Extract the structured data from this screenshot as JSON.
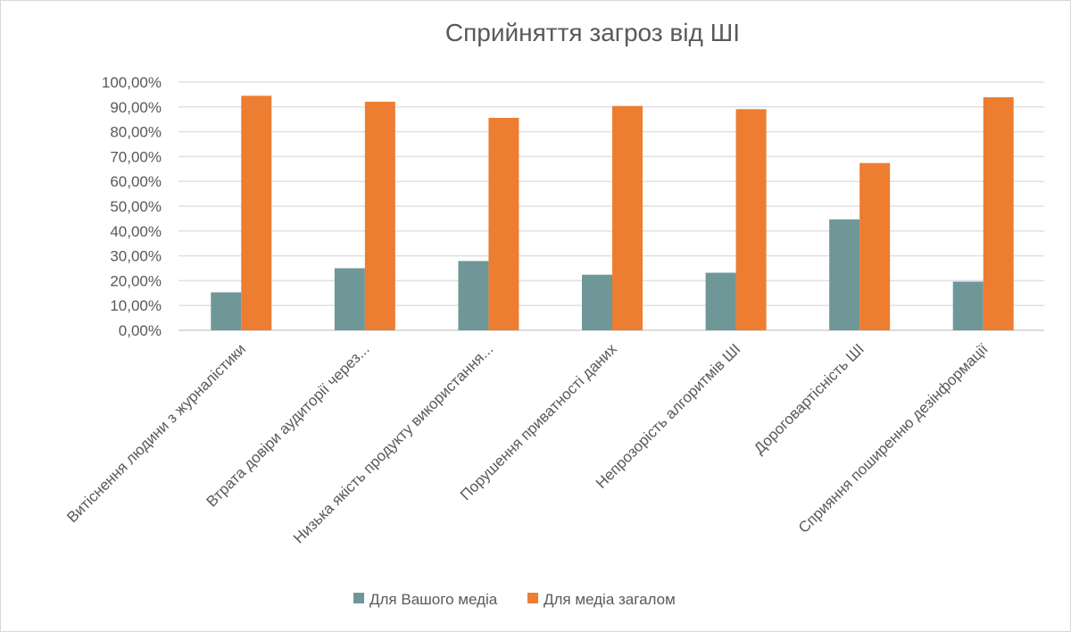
{
  "chart_data": {
    "type": "bar",
    "title": "Сприйняття загроз від ШІ",
    "xlabel": "",
    "ylabel": "",
    "ylim": [
      0,
      1
    ],
    "yticks": [
      "0,00%",
      "10,00%",
      "20,00%",
      "30,00%",
      "40,00%",
      "50,00%",
      "60,00%",
      "70,00%",
      "80,00%",
      "90,00%",
      "100,00%"
    ],
    "grid": true,
    "legend_position": "bottom",
    "categories": [
      "Витіснення людини з журналістики",
      "Втрата довіри аудиторії через...",
      "Низька якість продукту використання...",
      "Порушення приватності даних",
      "Непрозорість алгоритмів ШІ",
      "Дороговартісність ШІ",
      "Сприяння поширенню дезінформації"
    ],
    "series": [
      {
        "name": "Для Вашого медіа",
        "color": "#6f9797",
        "values": [
          0.153,
          0.25,
          0.279,
          0.224,
          0.232,
          0.447,
          0.196
        ]
      },
      {
        "name": "Для медіа загалом",
        "color": "#ed7d31",
        "values": [
          0.945,
          0.921,
          0.856,
          0.904,
          0.891,
          0.674,
          0.939
        ]
      }
    ]
  }
}
